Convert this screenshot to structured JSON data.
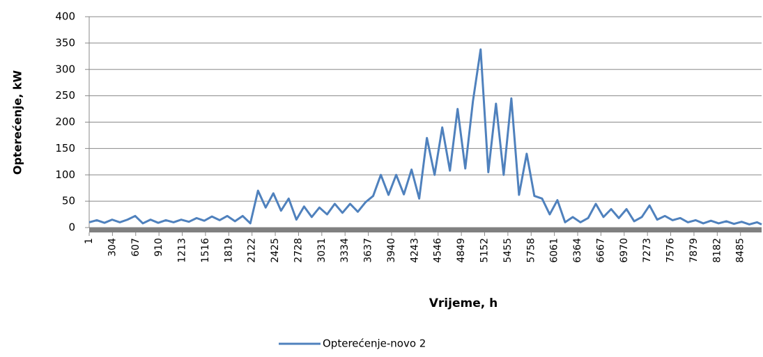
{
  "chart_data": {
    "type": "line",
    "xlabel": "Vrijeme, h",
    "ylabel": "Opterećenje, kW",
    "x": [
      1,
      100,
      200,
      300,
      400,
      500,
      600,
      700,
      800,
      900,
      1000,
      1100,
      1200,
      1300,
      1400,
      1500,
      1600,
      1700,
      1800,
      1900,
      2000,
      2100,
      2200,
      2300,
      2400,
      2500,
      2600,
      2700,
      2800,
      2900,
      3000,
      3100,
      3200,
      3300,
      3400,
      3500,
      3600,
      3700,
      3800,
      3900,
      4000,
      4100,
      4200,
      4300,
      4400,
      4500,
      4600,
      4700,
      4800,
      4900,
      5000,
      5100,
      5200,
      5300,
      5400,
      5500,
      5600,
      5700,
      5800,
      5900,
      6000,
      6100,
      6200,
      6300,
      6400,
      6500,
      6600,
      6700,
      6800,
      6900,
      7000,
      7100,
      7200,
      7300,
      7400,
      7500,
      7600,
      7700,
      7800,
      7900,
      8000,
      8100,
      8200,
      8300,
      8400,
      8500,
      8600,
      8700,
      8760
    ],
    "series": [
      {
        "name": "Opterećenje-novo 2",
        "color": "#4f81bd",
        "values": [
          10,
          14,
          9,
          15,
          10,
          15,
          22,
          8,
          15,
          9,
          14,
          10,
          15,
          11,
          18,
          13,
          21,
          14,
          22,
          12,
          22,
          8,
          70,
          38,
          65,
          32,
          55,
          15,
          40,
          20,
          38,
          25,
          45,
          28,
          45,
          30,
          48,
          60,
          100,
          62,
          100,
          63,
          110,
          55,
          170,
          100,
          190,
          108,
          225,
          112,
          240,
          338,
          105,
          235,
          100,
          245,
          62,
          140,
          60,
          55,
          25,
          52,
          10,
          20,
          10,
          18,
          45,
          20,
          35,
          18,
          35,
          12,
          20,
          42,
          15,
          22,
          14,
          18,
          10,
          14,
          8,
          13,
          8,
          12,
          7,
          11,
          6,
          10,
          6
        ]
      }
    ],
    "xlim": [
      1,
      8760
    ],
    "xticks": [
      1,
      304,
      607,
      910,
      1213,
      1516,
      1819,
      2122,
      2425,
      2728,
      3031,
      3334,
      3637,
      3940,
      4243,
      4546,
      4849,
      5152,
      5455,
      5758,
      6061,
      6364,
      6667,
      6970,
      7273,
      7576,
      7879,
      8182,
      8485
    ],
    "ylim": [
      0,
      400
    ],
    "yticks": [
      0,
      50,
      100,
      150,
      200,
      250,
      300,
      350,
      400
    ],
    "grid": true,
    "legend": "bottom"
  }
}
